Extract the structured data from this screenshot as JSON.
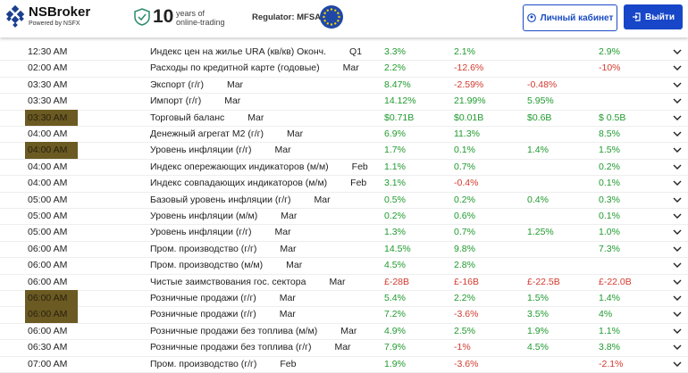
{
  "header": {
    "brand": "NSBroker",
    "powered": "Powered by NSFX",
    "years_number": "10",
    "years_line1": "years of",
    "years_line2": "online-trading",
    "regulator": "Regulator: MFSA",
    "cabinet_button": "Личный кабинет",
    "logout_button": "Выйти"
  },
  "table": {
    "rows": [
      {
        "time": "12:30 AM",
        "event": "Индекс цен на жилье URA (кв/кв) Оконч.",
        "period": "Q1",
        "actual": "3.3%",
        "forecast": "2.1%",
        "previous": null,
        "revised": "2.9%",
        "highlight": false
      },
      {
        "time": "02:00 AM",
        "event": "Расходы по кредитной карте (годовые)",
        "period": "Mar",
        "actual": "2.2%",
        "forecast": "-12.6%",
        "previous": null,
        "revised": "-10%",
        "highlight": false
      },
      {
        "time": "03:30 AM",
        "event": "Экспорт (г/г)",
        "period": "Mar",
        "actual": "8.47%",
        "forecast": "-2.59%",
        "previous": "-0.48%",
        "revised": null,
        "highlight": false
      },
      {
        "time": "03:30 AM",
        "event": "Импорт (г/г)",
        "period": "Mar",
        "actual": "14.12%",
        "forecast": "21.99%",
        "previous": "5.95%",
        "revised": null,
        "highlight": false
      },
      {
        "time": "03:30 AM",
        "event": "Торговый баланс",
        "period": "Mar",
        "actual": "$0.71B",
        "forecast": "$0.01B",
        "previous": "$0.6B",
        "revised": "$ 0.5B",
        "highlight": true
      },
      {
        "time": "04:00 AM",
        "event": "Денежный агрегат M2 (г/г)",
        "period": "Mar",
        "actual": "6.9%",
        "forecast": "11.3%",
        "previous": null,
        "revised": "8.5%",
        "highlight": false
      },
      {
        "time": "04:00 AM",
        "event": "Уровень инфляции (г/г)",
        "period": "Mar",
        "actual": "1.7%",
        "forecast": "0.1%",
        "previous": "1.4%",
        "revised": "1.5%",
        "highlight": true
      },
      {
        "time": "04:00 AM",
        "event": "Индекс опережающих индикаторов (м/м)",
        "period": "Feb",
        "actual": "1.1%",
        "forecast": "0.7%",
        "previous": null,
        "revised": "0.2%",
        "highlight": false
      },
      {
        "time": "04:00 AM",
        "event": "Индекс совпадающих индикаторов (м/м)",
        "period": "Feb",
        "actual": "3.1%",
        "forecast": "-0.4%",
        "previous": null,
        "revised": "0.1%",
        "highlight": false
      },
      {
        "time": "05:00 AM",
        "event": "Базовый уровень инфляции (г/г)",
        "period": "Mar",
        "actual": "0.5%",
        "forecast": "0.2%",
        "previous": "0.4%",
        "revised": "0.3%",
        "highlight": false
      },
      {
        "time": "05:00 AM",
        "event": "Уровень инфляции (м/м)",
        "period": "Mar",
        "actual": "0.2%",
        "forecast": "0.6%",
        "previous": null,
        "revised": "0.1%",
        "highlight": false
      },
      {
        "time": "05:00 AM",
        "event": "Уровень инфляции (г/г)",
        "period": "Mar",
        "actual": "1.3%",
        "forecast": "0.7%",
        "previous": "1.25%",
        "revised": "1.0%",
        "highlight": false
      },
      {
        "time": "06:00 AM",
        "event": "Пром. производство (г/г)",
        "period": "Mar",
        "actual": "14.5%",
        "forecast": "9.8%",
        "previous": null,
        "revised": "7.3%",
        "highlight": false
      },
      {
        "time": "06:00 AM",
        "event": "Пром. производство (м/м)",
        "period": "Mar",
        "actual": "4.5%",
        "forecast": "2.8%",
        "previous": null,
        "revised": null,
        "highlight": false
      },
      {
        "time": "06:00 AM",
        "event": "Чистые заимствования гос. сектора",
        "period": "Mar",
        "actual": "£-28B",
        "forecast": "£-16B",
        "previous": "£-22.5B",
        "revised": "£-22.0B",
        "highlight": false
      },
      {
        "time": "06:00 AM",
        "event": "Розничные продажи (г/г)",
        "period": "Mar",
        "actual": "5.4%",
        "forecast": "2.2%",
        "previous": "1.5%",
        "revised": "1.4%",
        "highlight": true
      },
      {
        "time": "06:00 AM",
        "event": "Розничные продажи (г/г)",
        "period": "Mar",
        "actual": "7.2%",
        "forecast": "-3.6%",
        "previous": "3.5%",
        "revised": "4%",
        "highlight": true
      },
      {
        "time": "06:00 AM",
        "event": "Розничные продажи без топлива (м/м)",
        "period": "Mar",
        "actual": "4.9%",
        "forecast": "2.5%",
        "previous": "1.9%",
        "revised": "1.1%",
        "highlight": false
      },
      {
        "time": "06:30 AM",
        "event": "Розничные продажи без топлива (г/г)",
        "period": "Mar",
        "actual": "7.9%",
        "forecast": "-1%",
        "previous": "4.5%",
        "revised": "3.8%",
        "highlight": false
      },
      {
        "time": "07:00 AM",
        "event": "Пром. производство (г/г)",
        "period": "Feb",
        "actual": "1.9%",
        "forecast": "-3.6%",
        "previous": null,
        "revised": "-2.1%",
        "highlight": false
      }
    ]
  }
}
